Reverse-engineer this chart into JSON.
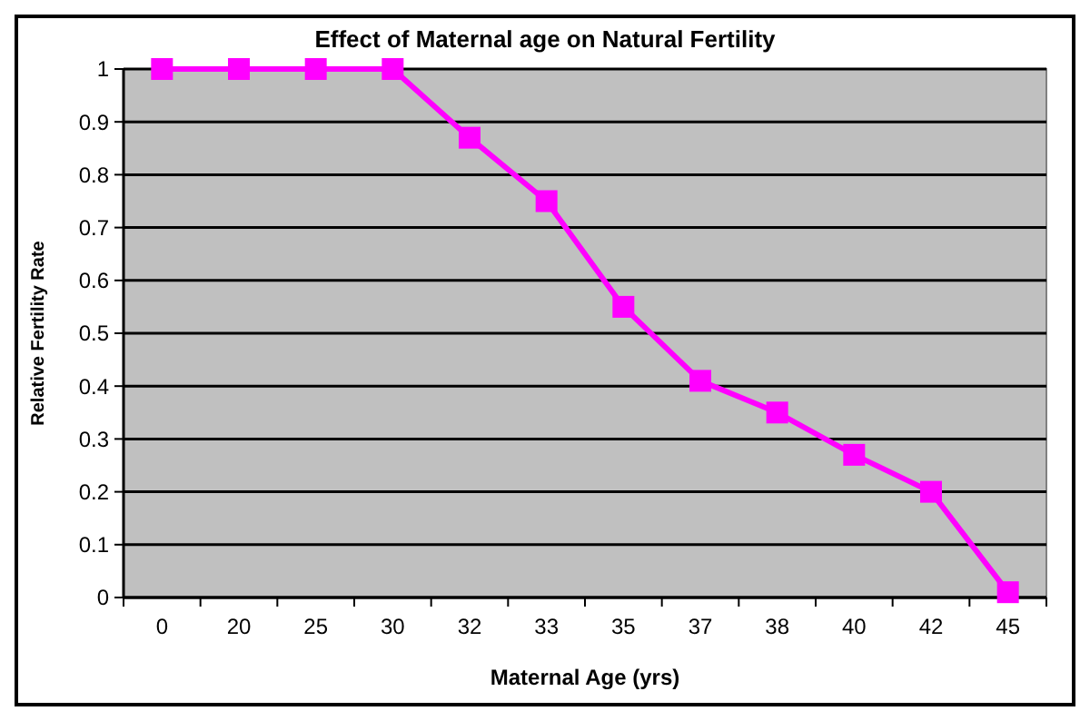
{
  "chart_data": {
    "type": "line",
    "title": "Effect of Maternal age on Natural Fertility",
    "xlabel": "Maternal Age (yrs)",
    "ylabel": "Relative Fertility Rate",
    "categories": [
      "0",
      "20",
      "25",
      "30",
      "32",
      "33",
      "35",
      "37",
      "38",
      "40",
      "42",
      "45"
    ],
    "series": [
      {
        "color": "#ff00ff",
        "values": [
          1,
          1,
          1,
          1,
          0.87,
          0.75,
          0.55,
          0.41,
          0.35,
          0.27,
          0.2,
          0.01
        ]
      }
    ],
    "ylim": [
      0,
      1
    ],
    "yticks": [
      0,
      0.1,
      0.2,
      0.3,
      0.4,
      0.5,
      0.6,
      0.7,
      0.8,
      0.9,
      1
    ],
    "grid": "y",
    "marker": "square",
    "line_style": "solid"
  }
}
